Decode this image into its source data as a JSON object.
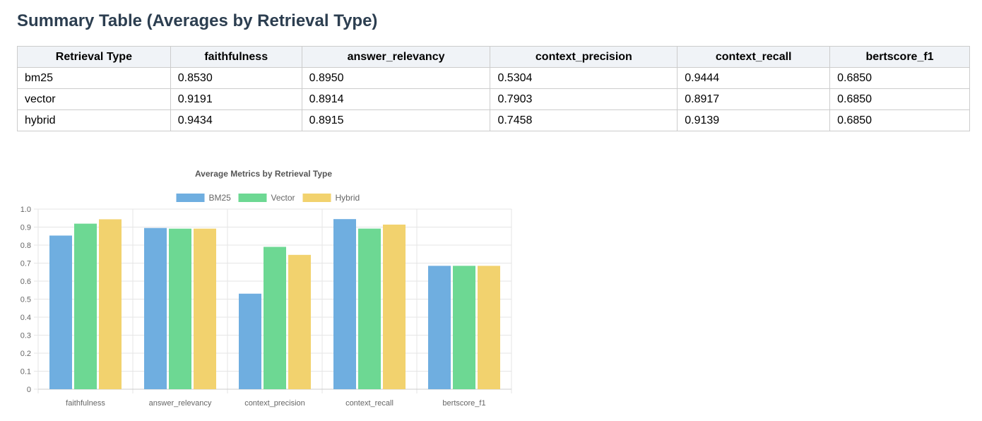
{
  "page": {
    "title": "Summary Table (Averages by Retrieval Type)"
  },
  "table": {
    "headers": [
      "Retrieval Type",
      "faithfulness",
      "answer_relevancy",
      "context_precision",
      "context_recall",
      "bertscore_f1"
    ],
    "rows": [
      [
        "bm25",
        "0.8530",
        "0.8950",
        "0.5304",
        "0.9444",
        "0.6850"
      ],
      [
        "vector",
        "0.9191",
        "0.8914",
        "0.7903",
        "0.8917",
        "0.6850"
      ],
      [
        "hybrid",
        "0.9434",
        "0.8915",
        "0.7458",
        "0.9139",
        "0.6850"
      ]
    ]
  },
  "chart_data": {
    "type": "bar",
    "title": "Average Metrics by Retrieval Type",
    "categories": [
      "faithfulness",
      "answer_relevancy",
      "context_precision",
      "context_recall",
      "bertscore_f1"
    ],
    "series": [
      {
        "name": "BM25",
        "color": "#6faee0",
        "values": [
          0.853,
          0.895,
          0.5304,
          0.9444,
          0.685
        ]
      },
      {
        "name": "Vector",
        "color": "#6dd893",
        "values": [
          0.9191,
          0.8914,
          0.7903,
          0.8917,
          0.685
        ]
      },
      {
        "name": "Hybrid",
        "color": "#f2d26e",
        "values": [
          0.9434,
          0.8915,
          0.7458,
          0.9139,
          0.685
        ]
      }
    ],
    "ylim": [
      0,
      1.0
    ],
    "yticks": [
      "0",
      "0.1",
      "0.2",
      "0.3",
      "0.4",
      "0.5",
      "0.6",
      "0.7",
      "0.8",
      "0.9",
      "1.0"
    ],
    "legend_position": "top-center",
    "grid": true
  }
}
